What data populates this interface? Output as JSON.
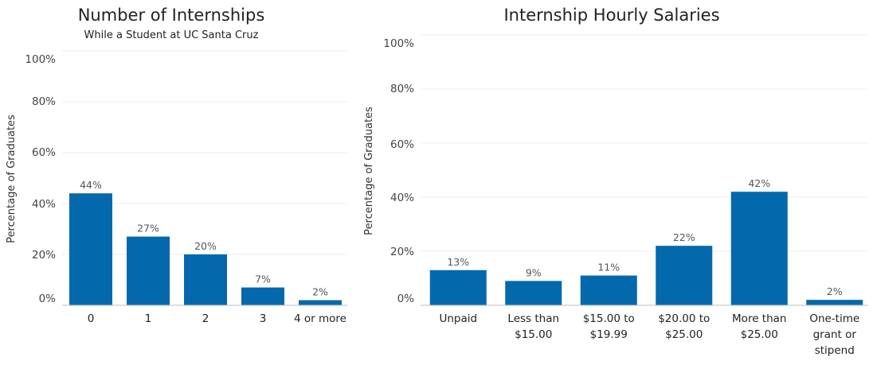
{
  "colors": {
    "bar": "#0468ad"
  },
  "chart_data": [
    {
      "type": "bar",
      "title": "Number of Internships",
      "subtitle": "While a Student at UC Santa Cruz",
      "ylabel": "Percentage of Graduates",
      "xlabel": "",
      "ylim": [
        0,
        100
      ],
      "yticks": [
        "0%",
        "20%",
        "40%",
        "60%",
        "80%",
        "100%"
      ],
      "categories": [
        "0",
        "1",
        "2",
        "3",
        "4 or more"
      ],
      "values": [
        44,
        27,
        20,
        7,
        2
      ],
      "data_labels": [
        "44%",
        "27%",
        "20%",
        "7%",
        "2%"
      ],
      "grid": true
    },
    {
      "type": "bar",
      "title": "Internship Hourly Salaries",
      "ylabel": "Percentage of Graduates",
      "xlabel": "",
      "ylim": [
        0,
        100
      ],
      "yticks": [
        "0%",
        "20%",
        "40%",
        "60%",
        "80%",
        "100%"
      ],
      "categories": [
        [
          "Unpaid"
        ],
        [
          "Less than",
          "$15.00"
        ],
        [
          "$15.00 to",
          "$19.99"
        ],
        [
          "$20.00 to",
          "$25.00"
        ],
        [
          "More than",
          "$25.00"
        ],
        [
          "One-time",
          "grant or",
          "stipend"
        ]
      ],
      "values": [
        13,
        9,
        11,
        22,
        42,
        2
      ],
      "data_labels": [
        "13%",
        "9%",
        "11%",
        "22%",
        "42%",
        "2%"
      ],
      "grid": true
    }
  ]
}
